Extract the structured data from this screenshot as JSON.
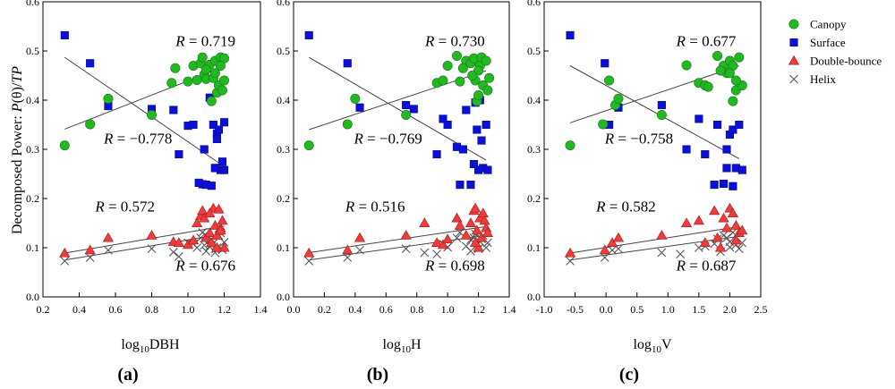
{
  "figure": {
    "ylabel": "Decomposed Power: P(θ)/TP",
    "ylabel_parts": {
      "prefix": "Decomposed Power: ",
      "italic": "P",
      "mid": "(θ)/",
      "italic2": "TP"
    },
    "colors": {
      "canopy": "#22b822",
      "surface": "#0b10d8",
      "double_bounce": "#ef3b3b",
      "helix": "#555555",
      "fit": "#444444"
    }
  },
  "legend": [
    {
      "key": "canopy",
      "label": "Canopy",
      "marker": "circle"
    },
    {
      "key": "surface",
      "label": "Surface",
      "marker": "square"
    },
    {
      "key": "double_bounce",
      "label": "Double-bounce",
      "marker": "triangle"
    },
    {
      "key": "helix",
      "label": "Helix",
      "marker": "cross"
    }
  ],
  "chart_data": [
    {
      "type": "scatter",
      "panel_label": "(a)",
      "xlabel": {
        "base": "log",
        "sub": "10",
        "var": "DBH"
      },
      "xlim": [
        0.2,
        1.4
      ],
      "ylim": [
        0.0,
        0.6
      ],
      "xticks": [
        "0.2",
        "0.4",
        "0.6",
        "0.8",
        "1.0",
        "1.2",
        "1.4"
      ],
      "yticks": [
        "0.0",
        "0.1",
        "0.2",
        "0.3",
        "0.4",
        "0.5",
        "0.6"
      ],
      "r_labels": [
        {
          "series": "canopy",
          "value": "0.719",
          "pos": "upper-right"
        },
        {
          "series": "surface",
          "value": "−0.778",
          "pos": "mid-left"
        },
        {
          "series": "double_bounce",
          "value": "0.572",
          "pos": "low-left"
        },
        {
          "series": "helix",
          "value": "0.676",
          "pos": "low-right"
        }
      ],
      "fits": [
        {
          "series": "canopy",
          "x": [
            0.32,
            1.2
          ],
          "y": [
            0.341,
            0.468
          ]
        },
        {
          "series": "surface",
          "x": [
            0.32,
            1.2
          ],
          "y": [
            0.487,
            0.265
          ]
        },
        {
          "series": "double_bounce",
          "x": [
            0.32,
            1.2
          ],
          "y": [
            0.089,
            0.144
          ]
        },
        {
          "series": "helix",
          "x": [
            0.32,
            1.2
          ],
          "y": [
            0.075,
            0.128
          ]
        }
      ],
      "series": [
        {
          "name": "canopy",
          "x": [
            0.32,
            0.46,
            0.56,
            0.8,
            0.91,
            0.93,
            1.0,
            1.03,
            1.05,
            1.07,
            1.08,
            1.09,
            1.1,
            1.12,
            1.13,
            1.14,
            1.15,
            1.16,
            1.17,
            1.18,
            1.19,
            1.2,
            1.2,
            1.15,
            1.18,
            1.1
          ],
          "y": [
            0.308,
            0.351,
            0.403,
            0.37,
            0.435,
            0.465,
            0.438,
            0.47,
            0.441,
            0.475,
            0.487,
            0.452,
            0.443,
            0.472,
            0.398,
            0.445,
            0.48,
            0.415,
            0.43,
            0.487,
            0.42,
            0.485,
            0.44,
            0.455,
            0.47,
            0.462
          ]
        },
        {
          "name": "surface",
          "x": [
            0.32,
            0.46,
            0.56,
            0.8,
            0.92,
            0.95,
            1.0,
            1.03,
            1.08,
            1.09,
            1.1,
            1.12,
            1.13,
            1.14,
            1.15,
            1.16,
            1.17,
            1.18,
            1.19,
            1.2,
            1.15,
            1.16,
            1.06,
            1.2
          ],
          "y": [
            0.532,
            0.475,
            0.388,
            0.382,
            0.38,
            0.29,
            0.348,
            0.35,
            0.229,
            0.3,
            0.228,
            0.405,
            0.226,
            0.35,
            0.262,
            0.332,
            0.34,
            0.258,
            0.275,
            0.355,
            0.262,
            0.321,
            0.232,
            0.258
          ]
        },
        {
          "name": "double_bounce",
          "x": [
            0.32,
            0.46,
            0.56,
            0.8,
            0.92,
            0.95,
            1.0,
            1.03,
            1.05,
            1.07,
            1.08,
            1.09,
            1.1,
            1.12,
            1.13,
            1.14,
            1.15,
            1.16,
            1.17,
            1.18,
            1.19,
            1.2,
            1.12,
            1.18,
            1.16
          ],
          "y": [
            0.089,
            0.095,
            0.12,
            0.125,
            0.112,
            0.11,
            0.106,
            0.115,
            0.15,
            0.165,
            0.175,
            0.16,
            0.12,
            0.13,
            0.11,
            0.18,
            0.145,
            0.125,
            0.178,
            0.14,
            0.155,
            0.1,
            0.17,
            0.135,
            0.1
          ]
        },
        {
          "name": "helix",
          "x": [
            0.32,
            0.46,
            0.56,
            0.8,
            0.92,
            0.95,
            1.0,
            1.03,
            1.05,
            1.07,
            1.08,
            1.09,
            1.1,
            1.12,
            1.13,
            1.14,
            1.15,
            1.16,
            1.17,
            1.18,
            1.19,
            1.2,
            1.15,
            1.1
          ],
          "y": [
            0.073,
            0.08,
            0.095,
            0.098,
            0.091,
            0.082,
            0.11,
            0.108,
            0.1,
            0.12,
            0.131,
            0.105,
            0.125,
            0.103,
            0.117,
            0.109,
            0.097,
            0.1,
            0.125,
            0.13,
            0.096,
            0.111,
            0.09,
            0.093
          ]
        }
      ]
    },
    {
      "type": "scatter",
      "panel_label": "(b)",
      "xlabel": {
        "base": "log",
        "sub": "10",
        "var": "H"
      },
      "xlim": [
        0.0,
        1.4
      ],
      "ylim": [
        0.0,
        0.6
      ],
      "xticks": [
        "0.0",
        "0.2",
        "0.4",
        "0.6",
        "0.8",
        "1.0",
        "1.2",
        "1.4"
      ],
      "yticks": [
        "0.0",
        "0.1",
        "0.2",
        "0.3",
        "0.4",
        "0.5",
        "0.6"
      ],
      "r_labels": [
        {
          "series": "canopy",
          "value": "0.730",
          "pos": "upper-right"
        },
        {
          "series": "surface",
          "value": "−0.769",
          "pos": "mid-left"
        },
        {
          "series": "double_bounce",
          "value": "0.516",
          "pos": "low-left"
        },
        {
          "series": "helix",
          "value": "0.698",
          "pos": "low-right"
        }
      ],
      "fits": [
        {
          "series": "canopy",
          "x": [
            0.1,
            1.25
          ],
          "y": [
            0.34,
            0.46
          ]
        },
        {
          "series": "surface",
          "x": [
            0.1,
            1.25
          ],
          "y": [
            0.487,
            0.278
          ]
        },
        {
          "series": "double_bounce",
          "x": [
            0.1,
            1.25
          ],
          "y": [
            0.09,
            0.143
          ]
        },
        {
          "series": "helix",
          "x": [
            0.1,
            1.25
          ],
          "y": [
            0.075,
            0.125
          ]
        }
      ],
      "series": [
        {
          "name": "canopy",
          "x": [
            0.1,
            0.35,
            0.4,
            0.73,
            0.93,
            0.97,
            1.0,
            1.06,
            1.08,
            1.12,
            1.15,
            1.17,
            1.18,
            1.19,
            1.2,
            1.21,
            1.22,
            1.23,
            1.25,
            1.26,
            1.27,
            1.2,
            1.1,
            1.16
          ],
          "y": [
            0.308,
            0.351,
            0.403,
            0.37,
            0.435,
            0.44,
            0.47,
            0.49,
            0.438,
            0.48,
            0.475,
            0.485,
            0.44,
            0.398,
            0.41,
            0.47,
            0.487,
            0.43,
            0.48,
            0.42,
            0.445,
            0.46,
            0.465,
            0.45
          ]
        },
        {
          "name": "surface",
          "x": [
            0.1,
            0.35,
            0.43,
            0.73,
            0.78,
            0.93,
            0.97,
            1.0,
            1.06,
            1.08,
            1.12,
            1.15,
            1.17,
            1.18,
            1.19,
            1.2,
            1.21,
            1.22,
            1.23,
            1.25,
            1.26,
            1.1
          ],
          "y": [
            0.532,
            0.475,
            0.385,
            0.39,
            0.382,
            0.29,
            0.362,
            0.35,
            0.305,
            0.228,
            0.38,
            0.228,
            0.27,
            0.395,
            0.34,
            0.258,
            0.4,
            0.318,
            0.262,
            0.35,
            0.258,
            0.3
          ]
        },
        {
          "name": "double_bounce",
          "x": [
            0.1,
            0.35,
            0.43,
            0.73,
            0.85,
            0.93,
            0.97,
            1.0,
            1.06,
            1.08,
            1.12,
            1.15,
            1.17,
            1.18,
            1.19,
            1.2,
            1.21,
            1.22,
            1.23,
            1.25,
            1.26,
            1.18,
            1.24
          ],
          "y": [
            0.089,
            0.095,
            0.12,
            0.125,
            0.15,
            0.11,
            0.106,
            0.117,
            0.16,
            0.145,
            0.125,
            0.15,
            0.175,
            0.18,
            0.135,
            0.1,
            0.16,
            0.12,
            0.17,
            0.14,
            0.13,
            0.11,
            0.155
          ]
        },
        {
          "name": "helix",
          "x": [
            0.1,
            0.35,
            0.43,
            0.73,
            0.85,
            0.93,
            0.97,
            1.0,
            1.06,
            1.08,
            1.12,
            1.15,
            1.17,
            1.18,
            1.19,
            1.2,
            1.21,
            1.22,
            1.23,
            1.25,
            1.26,
            1.15
          ],
          "y": [
            0.073,
            0.08,
            0.095,
            0.098,
            0.09,
            0.087,
            0.108,
            0.101,
            0.12,
            0.131,
            0.103,
            0.116,
            0.12,
            0.128,
            0.106,
            0.098,
            0.112,
            0.118,
            0.125,
            0.1,
            0.11,
            0.093
          ]
        }
      ]
    },
    {
      "type": "scatter",
      "panel_label": "(c)",
      "xlabel": {
        "base": "log",
        "sub": "10",
        "var": "V"
      },
      "xlim": [
        -1.0,
        2.5
      ],
      "ylim": [
        0.0,
        0.6
      ],
      "xticks": [
        "-1.0",
        "-0.5",
        "0.0",
        "0.5",
        "1.0",
        "1.5",
        "2.0",
        "2.5"
      ],
      "yticks": [
        "0.0",
        "0.1",
        "0.2",
        "0.3",
        "0.4",
        "0.5",
        "0.6"
      ],
      "r_labels": [
        {
          "series": "canopy",
          "value": "0.677",
          "pos": "upper-right"
        },
        {
          "series": "surface",
          "value": "−0.758",
          "pos": "mid-left"
        },
        {
          "series": "double_bounce",
          "value": "0.582",
          "pos": "low-left"
        },
        {
          "series": "helix",
          "value": "0.687",
          "pos": "low-right"
        }
      ],
      "fits": [
        {
          "series": "canopy",
          "x": [
            -0.58,
            2.15
          ],
          "y": [
            0.354,
            0.47
          ]
        },
        {
          "series": "surface",
          "x": [
            -0.58,
            2.15
          ],
          "y": [
            0.47,
            0.281
          ]
        },
        {
          "series": "double_bounce",
          "x": [
            -0.58,
            2.15
          ],
          "y": [
            0.089,
            0.143
          ]
        },
        {
          "series": "helix",
          "x": [
            -0.58,
            2.15
          ],
          "y": [
            0.075,
            0.123
          ]
        }
      ],
      "series": [
        {
          "name": "canopy",
          "x": [
            -0.58,
            -0.05,
            0.05,
            0.15,
            0.2,
            0.9,
            1.3,
            1.5,
            1.6,
            1.65,
            1.8,
            1.9,
            1.95,
            2.0,
            2.05,
            2.1,
            2.15,
            2.2,
            2.05,
            2.1,
            1.85,
            2.0
          ],
          "y": [
            0.308,
            0.351,
            0.44,
            0.39,
            0.403,
            0.37,
            0.471,
            0.435,
            0.43,
            0.427,
            0.49,
            0.47,
            0.455,
            0.48,
            0.47,
            0.42,
            0.487,
            0.43,
            0.398,
            0.44,
            0.46,
            0.455
          ]
        },
        {
          "name": "surface",
          "x": [
            -0.58,
            -0.02,
            0.05,
            0.2,
            0.9,
            1.3,
            1.5,
            1.6,
            1.75,
            1.8,
            1.9,
            1.95,
            2.0,
            2.05,
            2.1,
            2.15,
            2.2,
            2.05,
            1.95
          ],
          "y": [
            0.532,
            0.475,
            0.35,
            0.385,
            0.39,
            0.3,
            0.362,
            0.29,
            0.228,
            0.35,
            0.23,
            0.262,
            0.33,
            0.34,
            0.262,
            0.35,
            0.258,
            0.225,
            0.3
          ]
        },
        {
          "name": "double_bounce",
          "x": [
            -0.58,
            -0.02,
            0.1,
            0.2,
            0.9,
            1.3,
            1.5,
            1.6,
            1.75,
            1.8,
            1.9,
            1.95,
            2.0,
            2.05,
            2.1,
            2.15,
            2.2,
            1.85,
            2.1
          ],
          "y": [
            0.089,
            0.095,
            0.11,
            0.12,
            0.125,
            0.15,
            0.155,
            0.11,
            0.175,
            0.12,
            0.16,
            0.14,
            0.18,
            0.17,
            0.145,
            0.13,
            0.135,
            0.1,
            0.115
          ]
        },
        {
          "name": "helix",
          "x": [
            -0.58,
            -0.02,
            0.1,
            0.2,
            0.9,
            1.2,
            1.5,
            1.6,
            1.75,
            1.8,
            1.9,
            1.95,
            2.0,
            2.05,
            2.1,
            2.15,
            2.2,
            1.85,
            2.0
          ],
          "y": [
            0.073,
            0.08,
            0.095,
            0.098,
            0.09,
            0.087,
            0.1,
            0.103,
            0.108,
            0.118,
            0.125,
            0.12,
            0.112,
            0.131,
            0.106,
            0.098,
            0.11,
            0.092,
            0.101
          ]
        }
      ]
    }
  ]
}
